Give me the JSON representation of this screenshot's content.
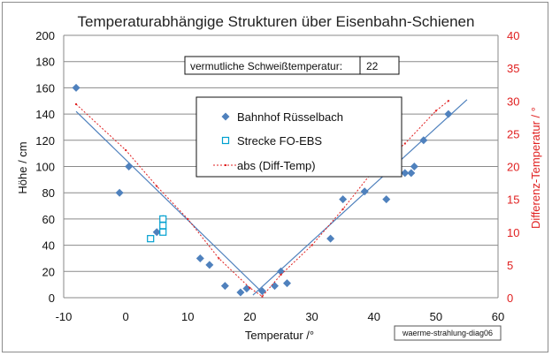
{
  "chart_data": {
    "type": "scatter",
    "title": "Temperaturabhängige Strukturen über Eisenbahn-Schienen",
    "xlabel": "Temperatur /°",
    "ylabel": "Höhe / cm",
    "y2label": "Differenz-Temperatur / °",
    "xlim": [
      -10,
      60
    ],
    "ylim": [
      0,
      200
    ],
    "y2lim": [
      0,
      40
    ],
    "xticks": [
      "-10",
      "0",
      "10",
      "20",
      "30",
      "40",
      "50",
      "60"
    ],
    "yticks": [
      "0",
      "20",
      "40",
      "60",
      "80",
      "100",
      "120",
      "140",
      "160",
      "180",
      "200"
    ],
    "y2ticks": [
      "0",
      "5",
      "10",
      "15",
      "20",
      "25",
      "30",
      "35",
      "40"
    ],
    "grid": "horizontal",
    "legend_position": "center",
    "annotation_label": "vermutliche Schweißtemperatur:",
    "annotation_value": "22",
    "tag": "waerme-strahlung-diag06",
    "series": [
      {
        "name": "Bahnhof Rüsselbach",
        "marker": "diamond",
        "color": "#4f81bd",
        "points": [
          [
            -8,
            160
          ],
          [
            -1,
            80
          ],
          [
            0.5,
            100
          ],
          [
            5,
            50
          ],
          [
            6,
            60
          ],
          [
            12,
            30
          ],
          [
            13.5,
            25
          ],
          [
            16,
            9
          ],
          [
            18.5,
            4
          ],
          [
            19.5,
            7
          ],
          [
            22,
            5
          ],
          [
            24,
            9
          ],
          [
            25,
            20
          ],
          [
            26,
            11
          ],
          [
            33,
            45
          ],
          [
            35,
            75
          ],
          [
            38.5,
            81
          ],
          [
            42,
            75
          ],
          [
            45,
            95
          ],
          [
            46,
            95
          ],
          [
            46.5,
            100
          ],
          [
            48,
            120
          ],
          [
            52,
            140
          ]
        ]
      },
      {
        "name": "Strecke FO-EBS",
        "marker": "square-open",
        "color": "#00a0d0",
        "points": [
          [
            4,
            45
          ],
          [
            6,
            50
          ],
          [
            6,
            55
          ],
          [
            6,
            60
          ]
        ]
      },
      {
        "name": "abs (Diff-Temp)",
        "marker": "dotted-line",
        "color": "#e02020",
        "axis": "right",
        "points": [
          [
            -8,
            29.5
          ],
          [
            0,
            22.5
          ],
          [
            5,
            17
          ],
          [
            10,
            12
          ],
          [
            15,
            6
          ],
          [
            20,
            1.5
          ],
          [
            22,
            0.2
          ],
          [
            25,
            3.5
          ],
          [
            30,
            8
          ],
          [
            35,
            13.5
          ],
          [
            40,
            19.5
          ],
          [
            45,
            23.5
          ],
          [
            50,
            28.5
          ],
          [
            52,
            30
          ]
        ]
      }
    ],
    "trendlines": [
      {
        "series": "Bahnhof Rüsselbach",
        "color": "#4f81bd",
        "points": [
          [
            -8,
            142
          ],
          [
            22,
            4
          ]
        ]
      },
      {
        "series": "Bahnhof Rüsselbach",
        "color": "#4f81bd",
        "points": [
          [
            20.5,
            2
          ],
          [
            55,
            151
          ]
        ]
      }
    ]
  }
}
